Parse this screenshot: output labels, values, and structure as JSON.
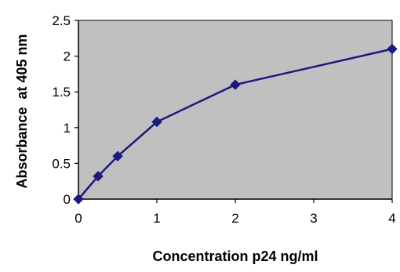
{
  "chart_data": {
    "type": "line",
    "xlabel": "Concentration p24 ng/ml",
    "ylabel": "Absorbance  at 405 nm",
    "x_categories": [
      "0",
      "1",
      "2",
      "3",
      "4"
    ],
    "ylim": [
      0,
      2.5
    ],
    "y_ticks": [
      "0",
      "0.5",
      "1",
      "1.5",
      "2",
      "2.5"
    ],
    "grid": false,
    "legend": "none",
    "plot_background": "#c0c0c0",
    "line_color": "#1a1a80",
    "points": [
      {
        "x": 0,
        "y": 0
      },
      {
        "x": 0.25,
        "y": 0.32
      },
      {
        "x": 0.5,
        "y": 0.6
      },
      {
        "x": 1,
        "y": 1.08
      },
      {
        "x": 2,
        "y": 1.6
      },
      {
        "x": 4,
        "y": 2.1
      }
    ]
  }
}
